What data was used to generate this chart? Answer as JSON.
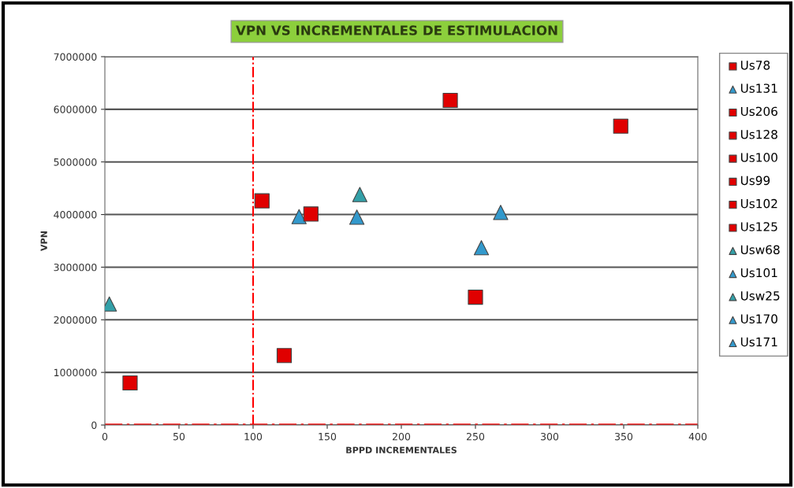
{
  "chart_data": {
    "type": "scatter",
    "title": "VPN VS INCREMENTALES DE ESTIMULACION",
    "xlabel": "BPPD INCREMENTALES",
    "ylabel": "VPN",
    "xlim": [
      0,
      400
    ],
    "xticks": [
      0,
      50,
      100,
      150,
      200,
      250,
      300,
      350,
      400
    ],
    "ylim": [
      0,
      7000000
    ],
    "yticks": [
      0,
      1000000,
      2000000,
      3000000,
      4000000,
      5000000,
      6000000,
      7000000
    ],
    "grid": "y",
    "legend": "right",
    "ref_lines": [
      {
        "axis": "x",
        "value": 100,
        "color": "#ff0000",
        "line_style": "dashdot"
      },
      {
        "axis": "y",
        "value": 0,
        "color": "#ff0000",
        "line_style": "dashdot"
      }
    ],
    "series": [
      {
        "name": "Us78",
        "color": "#e00000",
        "marker": "square",
        "x": [
          17
        ],
        "values": [
          800000
        ]
      },
      {
        "name": "Us131",
        "color": "#3399cc",
        "marker": "triangle",
        "x": [
          131
        ],
        "values": [
          3960000
        ]
      },
      {
        "name": "Us206",
        "color": "#e00000",
        "marker": "square",
        "x": [
          106
        ],
        "values": [
          4260000
        ]
      },
      {
        "name": "Us128",
        "color": "#e00000",
        "marker": "square",
        "x": [
          121
        ],
        "values": [
          1320000
        ]
      },
      {
        "name": "Us100",
        "color": "#e00000",
        "marker": "square",
        "x": [
          139
        ],
        "values": [
          4010000
        ]
      },
      {
        "name": "Us99",
        "color": "#e00000",
        "marker": "square",
        "x": [
          233
        ],
        "values": [
          6170000
        ]
      },
      {
        "name": "Us102",
        "color": "#e00000",
        "marker": "square",
        "x": [
          250
        ],
        "values": [
          2430000
        ]
      },
      {
        "name": "Us125",
        "color": "#e00000",
        "marker": "square",
        "x": [
          348
        ],
        "values": [
          5680000
        ]
      },
      {
        "name": "Usw68",
        "color": "#33a0a8",
        "marker": "triangle",
        "x": [
          3
        ],
        "values": [
          2300000
        ]
      },
      {
        "name": "Us101",
        "color": "#3399cc",
        "marker": "triangle",
        "x": [
          170
        ],
        "values": [
          3950000
        ]
      },
      {
        "name": "Usw25",
        "color": "#33a0a8",
        "marker": "triangle",
        "x": [
          172
        ],
        "values": [
          4380000
        ]
      },
      {
        "name": "Us170",
        "color": "#3399cc",
        "marker": "triangle",
        "x": [
          254
        ],
        "values": [
          3370000
        ]
      },
      {
        "name": "Us171",
        "color": "#3399cc",
        "marker": "triangle",
        "x": [
          267
        ],
        "values": [
          4040000
        ]
      }
    ]
  }
}
